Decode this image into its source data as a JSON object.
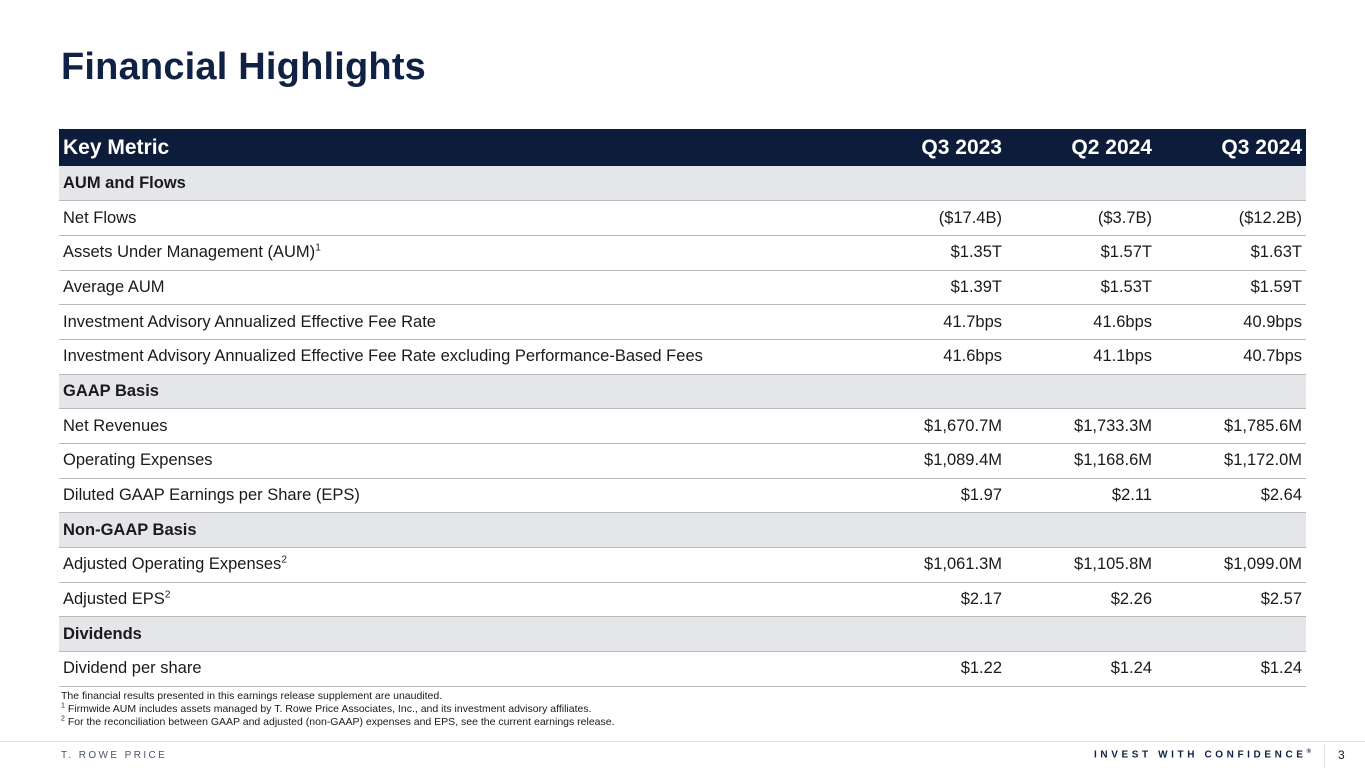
{
  "page": {
    "title": "Financial Highlights",
    "page_number": "3"
  },
  "table": {
    "headers": [
      "Key Metric",
      "Q3 2023",
      "Q2 2024",
      "Q3 2024"
    ],
    "rows": [
      {
        "type": "section",
        "label": "AUM and Flows"
      },
      {
        "type": "data",
        "label": "Net Flows",
        "values": [
          "($17.4B)",
          "($3.7B)",
          "($12.2B)"
        ]
      },
      {
        "type": "data",
        "label": "Assets Under Management (AUM)",
        "sup": "1",
        "values": [
          "$1.35T",
          "$1.57T",
          "$1.63T"
        ]
      },
      {
        "type": "data",
        "label": "Average AUM",
        "values": [
          "$1.39T",
          "$1.53T",
          "$1.59T"
        ]
      },
      {
        "type": "data",
        "label": "Investment Advisory Annualized Effective Fee Rate",
        "values": [
          "41.7bps",
          "41.6bps",
          "40.9bps"
        ]
      },
      {
        "type": "data",
        "label": "Investment Advisory Annualized Effective Fee Rate excluding Performance-Based Fees",
        "values": [
          "41.6bps",
          "41.1bps",
          "40.7bps"
        ]
      },
      {
        "type": "section",
        "label": "GAAP Basis"
      },
      {
        "type": "data",
        "label": "Net Revenues",
        "values": [
          "$1,670.7M",
          "$1,733.3M",
          "$1,785.6M"
        ]
      },
      {
        "type": "data",
        "label": "Operating Expenses",
        "values": [
          "$1,089.4M",
          "$1,168.6M",
          "$1,172.0M"
        ]
      },
      {
        "type": "data",
        "label": "Diluted GAAP Earnings per Share (EPS)",
        "values": [
          "$1.97",
          "$2.11",
          "$2.64"
        ]
      },
      {
        "type": "section",
        "label": "Non-GAAP Basis"
      },
      {
        "type": "data",
        "label": "Adjusted Operating Expenses",
        "sup": "2",
        "values": [
          "$1,061.3M",
          "$1,105.8M",
          "$1,099.0M"
        ]
      },
      {
        "type": "data",
        "label": "Adjusted EPS",
        "sup": "2",
        "values": [
          "$2.17",
          "$2.26",
          "$2.57"
        ]
      },
      {
        "type": "section",
        "label": "Dividends"
      },
      {
        "type": "data",
        "label": "Dividend per share",
        "values": [
          "$1.22",
          "$1.24",
          "$1.24"
        ]
      }
    ]
  },
  "footnotes": {
    "intro": "The financial results presented in this earnings release supplement are unaudited.",
    "notes": [
      {
        "mark": "1",
        "text": " Firmwide AUM includes assets managed by T. Rowe Price Associates, Inc., and its investment advisory affiliates."
      },
      {
        "mark": "2",
        "text": " For the reconciliation between GAAP and adjusted (non-GAAP) expenses and EPS, see the current earnings release."
      }
    ]
  },
  "footer": {
    "brand": "T. ROWE PRICE",
    "tagline": "INVEST WITH CONFIDENCE",
    "tagline_mark": "®"
  },
  "colors": {
    "title_navy": "#0f2246",
    "header_bg": "#0d1c3a",
    "section_bg": "#e4e6e9",
    "row_rule": "#b9b9b9"
  }
}
